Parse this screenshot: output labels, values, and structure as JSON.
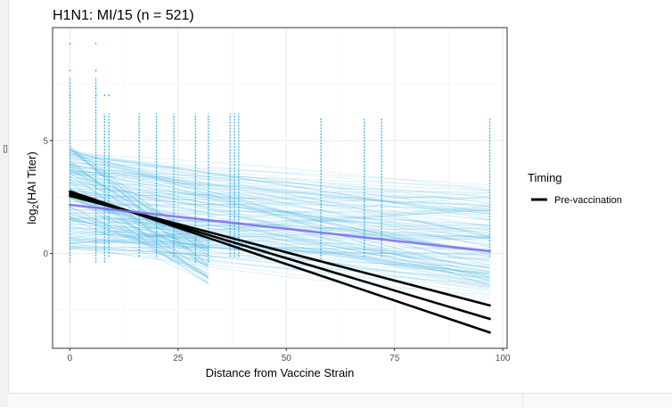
{
  "chart_data": {
    "type": "line",
    "title": "H1N1: MI/15 (n = 521)",
    "xlabel": "Distance from Vaccine Strain",
    "ylabel": "log2(HAI Titer)",
    "ylabel_base": "log",
    "ylabel_sub": "2",
    "ylabel_rest": "(HAI Titer)",
    "xlim": [
      -4,
      101
    ],
    "ylim": [
      -4.2,
      10
    ],
    "x_ticks": [
      0,
      25,
      50,
      75,
      100
    ],
    "y_ticks": [
      0,
      5
    ],
    "grid": true,
    "legend": {
      "title": "Timing",
      "position": "right",
      "entries": [
        "Pre-vaccination"
      ]
    },
    "strain_distances": [
      0,
      6,
      8,
      9,
      16,
      20,
      24,
      29,
      32,
      37,
      38,
      39,
      58,
      68,
      72,
      97
    ],
    "individual_fits": {
      "color": "#29a8e0",
      "count": 521,
      "x_range": [
        0,
        97
      ],
      "note_visible": false
    },
    "series": [
      {
        "name": "Pre-vaccination",
        "color": "#000000",
        "x": [
          0,
          97
        ],
        "y": [
          2.55,
          -2.3
        ]
      },
      {
        "name": "Pre-vaccination",
        "color": "#000000",
        "x": [
          0,
          97
        ],
        "y": [
          2.65,
          -2.9
        ]
      },
      {
        "name": "Pre-vaccination",
        "color": "#000000",
        "x": [
          0,
          97
        ],
        "y": [
          2.75,
          -3.5
        ]
      },
      {
        "name": "",
        "color": "#7b68ee",
        "x": [
          0,
          97
        ],
        "y": [
          2.15,
          0.1
        ]
      }
    ]
  },
  "ui": {
    "left_glyph": "▯"
  }
}
